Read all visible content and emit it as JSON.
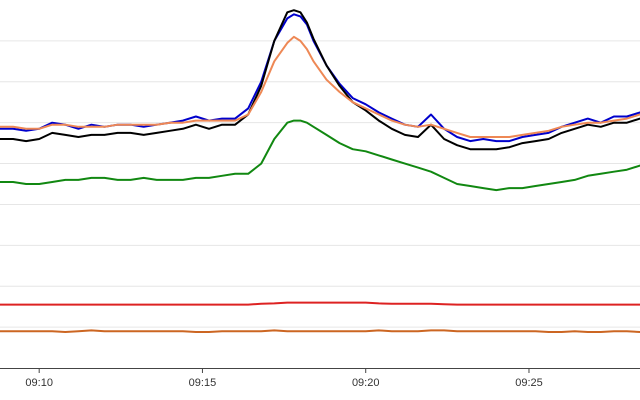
{
  "chart_data": {
    "type": "line",
    "title": "",
    "xlabel": "",
    "ylabel": "",
    "x_ticks": [
      "09:10",
      "09:15",
      "09:20",
      "09:25"
    ],
    "x_tick_minutes": [
      10,
      15,
      20,
      25
    ],
    "xlim_minutes": [
      8.8,
      28.4
    ],
    "ylim": [
      0,
      9
    ],
    "grid": true,
    "grid_lines_y": [
      1,
      2,
      3,
      4,
      5,
      6,
      7,
      8
    ],
    "legend": "none",
    "x": [
      8.8,
      9.2,
      9.6,
      10.0,
      10.4,
      10.8,
      11.2,
      11.6,
      12.0,
      12.4,
      12.8,
      13.2,
      13.6,
      14.0,
      14.4,
      14.8,
      15.2,
      15.6,
      16.0,
      16.4,
      16.8,
      17.2,
      17.6,
      17.8,
      18.0,
      18.2,
      18.4,
      18.8,
      19.2,
      19.6,
      20.0,
      20.4,
      20.8,
      21.2,
      21.6,
      22.0,
      22.4,
      22.8,
      23.2,
      23.6,
      24.0,
      24.4,
      24.8,
      25.2,
      25.6,
      26.0,
      26.4,
      26.8,
      27.2,
      27.6,
      28.0,
      28.4
    ],
    "series": [
      {
        "color": "#0000cc",
        "values": [
          5.85,
          5.85,
          5.8,
          5.85,
          6.0,
          5.95,
          5.85,
          5.95,
          5.9,
          5.95,
          5.95,
          5.9,
          5.95,
          6.0,
          6.05,
          6.15,
          6.05,
          6.1,
          6.1,
          6.35,
          7.0,
          8.0,
          8.55,
          8.65,
          8.6,
          8.4,
          8.0,
          7.4,
          6.95,
          6.6,
          6.45,
          6.25,
          6.1,
          5.95,
          5.9,
          6.2,
          5.85,
          5.65,
          5.55,
          5.6,
          5.55,
          5.55,
          5.65,
          5.7,
          5.75,
          5.9,
          6.0,
          6.1,
          6.0,
          6.15,
          6.15,
          6.25
        ]
      },
      {
        "color": "#000000",
        "values": [
          5.6,
          5.6,
          5.55,
          5.6,
          5.75,
          5.7,
          5.65,
          5.7,
          5.7,
          5.75,
          5.75,
          5.7,
          5.75,
          5.8,
          5.85,
          5.95,
          5.85,
          5.95,
          5.95,
          6.2,
          6.9,
          8.0,
          8.7,
          8.75,
          8.7,
          8.45,
          8.05,
          7.4,
          6.9,
          6.5,
          6.3,
          6.05,
          5.85,
          5.7,
          5.65,
          5.95,
          5.6,
          5.45,
          5.35,
          5.35,
          5.35,
          5.4,
          5.5,
          5.55,
          5.6,
          5.75,
          5.85,
          5.95,
          5.9,
          6.0,
          6.0,
          6.1
        ]
      },
      {
        "color": "#ee8855",
        "values": [
          5.9,
          5.9,
          5.85,
          5.85,
          5.95,
          5.95,
          5.9,
          5.9,
          5.9,
          5.95,
          5.95,
          5.95,
          5.95,
          6.0,
          6.0,
          6.05,
          6.05,
          6.05,
          6.05,
          6.2,
          6.75,
          7.5,
          7.95,
          8.1,
          8.0,
          7.8,
          7.5,
          7.05,
          6.75,
          6.5,
          6.35,
          6.2,
          6.05,
          5.95,
          5.9,
          5.95,
          5.85,
          5.75,
          5.65,
          5.65,
          5.65,
          5.65,
          5.7,
          5.75,
          5.8,
          5.9,
          5.95,
          6.0,
          6.0,
          6.05,
          6.1,
          6.2
        ]
      },
      {
        "color": "#118811",
        "values": [
          4.55,
          4.55,
          4.5,
          4.5,
          4.55,
          4.6,
          4.6,
          4.65,
          4.65,
          4.6,
          4.6,
          4.65,
          4.6,
          4.6,
          4.6,
          4.65,
          4.65,
          4.7,
          4.75,
          4.75,
          5.0,
          5.6,
          6.0,
          6.05,
          6.05,
          6.0,
          5.9,
          5.7,
          5.5,
          5.35,
          5.3,
          5.2,
          5.1,
          5.0,
          4.9,
          4.8,
          4.65,
          4.5,
          4.45,
          4.4,
          4.35,
          4.4,
          4.4,
          4.45,
          4.5,
          4.55,
          4.6,
          4.7,
          4.75,
          4.8,
          4.85,
          4.95
        ]
      },
      {
        "color": "#dd2222",
        "values": [
          1.55,
          1.55,
          1.55,
          1.55,
          1.55,
          1.55,
          1.55,
          1.55,
          1.55,
          1.55,
          1.55,
          1.55,
          1.55,
          1.55,
          1.55,
          1.55,
          1.55,
          1.55,
          1.55,
          1.55,
          1.57,
          1.58,
          1.6,
          1.6,
          1.6,
          1.6,
          1.6,
          1.6,
          1.6,
          1.6,
          1.6,
          1.58,
          1.57,
          1.57,
          1.57,
          1.57,
          1.56,
          1.55,
          1.55,
          1.55,
          1.55,
          1.55,
          1.55,
          1.55,
          1.55,
          1.55,
          1.55,
          1.55,
          1.55,
          1.55,
          1.55,
          1.55
        ]
      },
      {
        "color": "#cc6622",
        "values": [
          0.9,
          0.9,
          0.9,
          0.9,
          0.9,
          0.88,
          0.9,
          0.92,
          0.9,
          0.9,
          0.9,
          0.9,
          0.9,
          0.9,
          0.9,
          0.88,
          0.88,
          0.9,
          0.9,
          0.9,
          0.9,
          0.92,
          0.9,
          0.9,
          0.9,
          0.9,
          0.9,
          0.9,
          0.9,
          0.9,
          0.9,
          0.92,
          0.9,
          0.9,
          0.9,
          0.92,
          0.92,
          0.9,
          0.9,
          0.9,
          0.9,
          0.9,
          0.9,
          0.9,
          0.88,
          0.88,
          0.9,
          0.88,
          0.88,
          0.9,
          0.9,
          0.88
        ]
      }
    ]
  }
}
